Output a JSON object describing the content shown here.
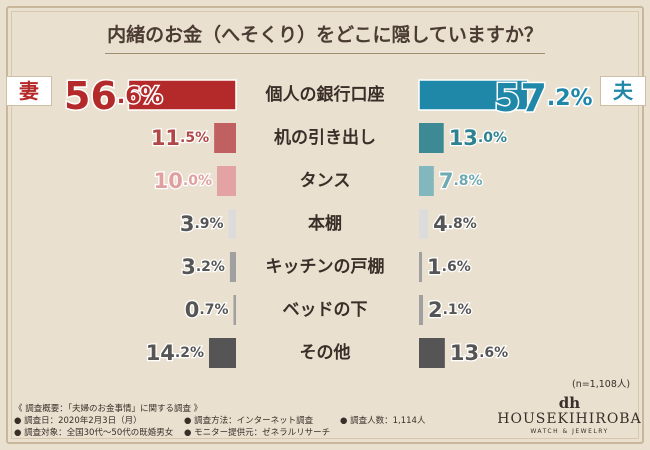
{
  "title": "内緒のお金（へそくり）をどこに隠していますか？",
  "wife_label": "妻",
  "husband_label": "夫",
  "sample_note": "(n=1,108人)",
  "notes": {
    "overview": "《 調査概要：「夫婦のお金事情」に関する調査 》",
    "date": "● 調査日：2020年2月3日（月）",
    "method": "● 調査方法：インターネット調査",
    "count": "● 調査人数：1,114人",
    "target": "● 調査対象：全国30代〜50代の既婚男女",
    "provider": "● モニター提供元：ゼネラルリサーチ"
  },
  "logo": {
    "mark": "dh",
    "name": "HOUSEKIHIROBA",
    "sub": "WATCH & JEWELRY"
  },
  "colors": {
    "background": "#eae0cf",
    "wife": [
      "#b42a2a",
      "#c06060",
      "#e3a3a3",
      "#dcdcdc",
      "#a0a0a0",
      "#a0a0a0",
      "#555555"
    ],
    "husband": [
      "#1f87a8",
      "#3d8a94",
      "#82b7bd",
      "#dcdcdc",
      "#a0a0a0",
      "#a0a0a0",
      "#555555"
    ],
    "wife_text": [
      "#b42a2a",
      "#b14848",
      "#e0a0a0",
      "#555555",
      "#555555",
      "#555555",
      "#555555"
    ],
    "husband_text": [
      "#1f87a8",
      "#2f8290",
      "#6fa9b2",
      "#555555",
      "#555555",
      "#555555",
      "#555555"
    ]
  },
  "chart_data": {
    "type": "bar",
    "categories": [
      "個人の銀行口座",
      "机の引き出し",
      "タンス",
      "本棚",
      "キッチンの戸棚",
      "ベッドの下",
      "その他"
    ],
    "series": [
      {
        "name": "妻",
        "values": [
          56.6,
          11.5,
          10.0,
          3.9,
          3.2,
          0.7,
          14.2
        ]
      },
      {
        "name": "夫",
        "values": [
          57.2,
          13.0,
          7.8,
          4.8,
          1.6,
          2.1,
          13.6
        ]
      }
    ],
    "unit": "%",
    "title": "内緒のお金（へそくり）をどこに隠していますか？"
  }
}
